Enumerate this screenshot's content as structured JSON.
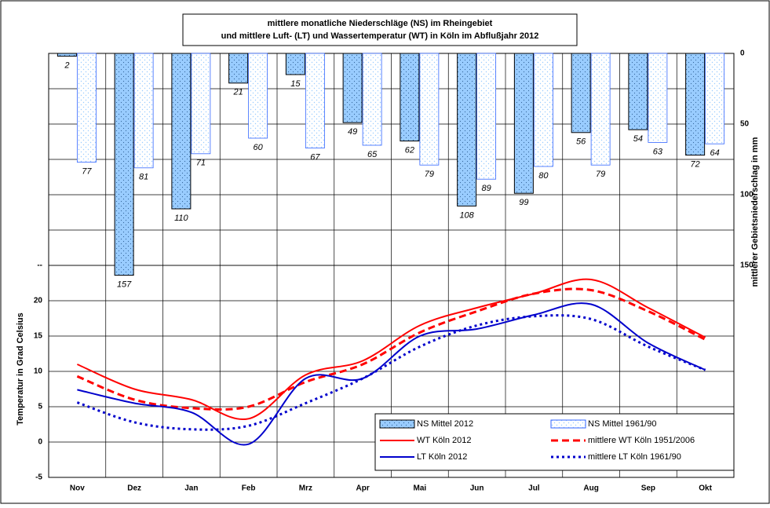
{
  "chart_data": {
    "type": "bar-line",
    "title": "mittlere monatliche Niederschläge (NS) im Rheingebiet",
    "subtitle": "und mittlere Luft- (LT) und Wassertemperatur (WT) in Köln im Abflußjahr 2012",
    "y_label": "Temperatur in Grad Celsius",
    "y2_label": "mittlerer Gebietsniederschlag in mm",
    "categories": [
      "Nov",
      "Dez",
      "Jan",
      "Feb",
      "Mrz",
      "Apr",
      "Mai",
      "Jun",
      "Jul",
      "Aug",
      "Sep",
      "Okt"
    ],
    "ylim": [
      -5,
      55
    ],
    "yticks": [
      -5,
      0,
      5,
      10,
      15,
      20,
      {
        "value": 25,
        "label": "--"
      }
    ],
    "y2lim": [
      300,
      0
    ],
    "y2ticks": [
      0,
      50,
      100,
      150
    ],
    "y2_minor_ticks": [
      25,
      75,
      125
    ],
    "grid": true,
    "legend_position": "lower right",
    "series": [
      {
        "name": "NS Mittel 2012",
        "kind": "bar",
        "axis": "y2",
        "color": "#99ccff",
        "values": [
          2,
          157,
          110,
          21,
          15,
          49,
          62,
          108,
          99,
          56,
          54,
          72
        ]
      },
      {
        "name": "NS Mittel 1961/90",
        "kind": "bar",
        "axis": "y2",
        "color": "#ffffff",
        "values": [
          77,
          81,
          71,
          60,
          67,
          65,
          79,
          89,
          80,
          79,
          63,
          64
        ]
      },
      {
        "name": "WT Köln 2012",
        "kind": "line",
        "color": "#ff0000",
        "dash": "solid",
        "values": [
          11,
          7.5,
          6,
          3.3,
          9.5,
          11.5,
          16.5,
          19,
          21,
          23,
          19,
          14.8
        ]
      },
      {
        "name": "mittlere WT Köln 1951/2006",
        "kind": "line",
        "color": "#ff0000",
        "dash": "dashed",
        "values": [
          9.3,
          6,
          4.8,
          5,
          8.5,
          11,
          15.5,
          18.5,
          21,
          21.5,
          18.5,
          14.5
        ]
      },
      {
        "name": "LT Köln 2012",
        "kind": "line",
        "color": "#0000cc",
        "dash": "solid",
        "values": [
          7.4,
          5.5,
          4.2,
          -0.3,
          9,
          9,
          15,
          16,
          18,
          19.5,
          14,
          10.2
        ]
      },
      {
        "name": "mittlere LT Köln 1961/90",
        "kind": "line",
        "color": "#0000cc",
        "dash": "dotted",
        "values": [
          5.6,
          2.8,
          1.8,
          2.3,
          5.5,
          9,
          13.5,
          16.5,
          17.8,
          17.4,
          13.5,
          10.2
        ]
      }
    ]
  }
}
